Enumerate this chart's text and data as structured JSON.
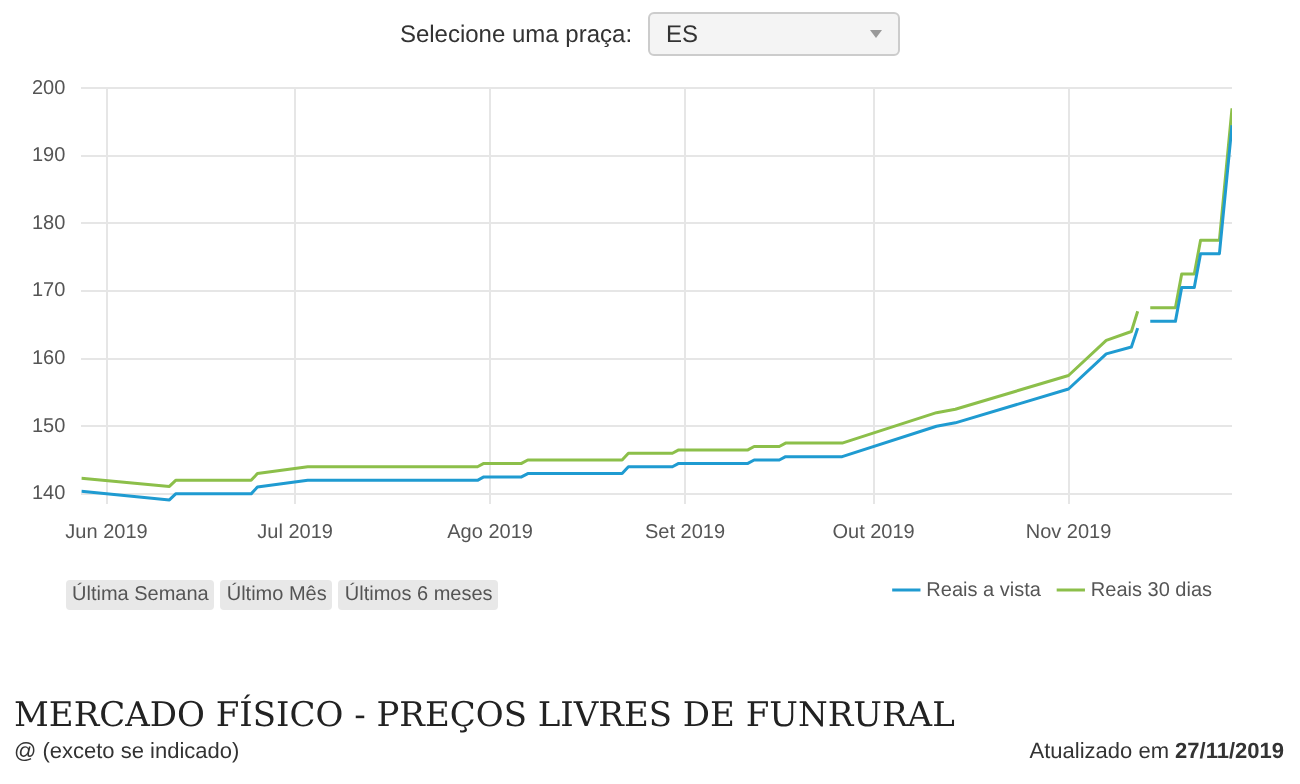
{
  "chart_data": {
    "type": "line",
    "title": "MERCADO FÍSICO - PREÇOS LIVRES DE FUNRURAL",
    "subtitle": "@ (exceto se indicado)",
    "annotations": [
      "Selecione uma praça:",
      "ES",
      "Última Semana",
      "Último Mês",
      "Últimos 6 meses",
      "Atualizado em 27/11/2019"
    ],
    "x": [
      "2019-05-28",
      "2019-06-11",
      "2019-06-12",
      "2019-06-24",
      "2019-06-25",
      "2019-07-03",
      "2019-07-30",
      "2019-07-31",
      "2019-08-06",
      "2019-08-07",
      "2019-08-22",
      "2019-08-23",
      "2019-08-30",
      "2019-08-31",
      "2019-09-11",
      "2019-09-12",
      "2019-09-16",
      "2019-09-17",
      "2019-09-26",
      "2019-10-11",
      "2019-10-14",
      "2019-11-01",
      "2019-11-07",
      "2019-11-11",
      "2019-11-12",
      "2019-11-13",
      "2019-11-14",
      "2019-11-18",
      "2019-11-19",
      "2019-11-21",
      "2019-11-22",
      "2019-11-25",
      "2019-11-27"
    ],
    "series": [
      {
        "name": "Reais a vista",
        "color": "#1f9bd1",
        "values": [
          140.4,
          139.1,
          140,
          140,
          141,
          142,
          142,
          142.5,
          142.5,
          143,
          143,
          144,
          144,
          144.5,
          144.5,
          145,
          145,
          145.5,
          145.5,
          150,
          150.5,
          155.5,
          160.7,
          161.7,
          164.5,
          null,
          165.5,
          165.5,
          170.5,
          170.5,
          175.5,
          175.5,
          194.5
        ]
      },
      {
        "name": "Reais 30 dias",
        "color": "#8cbf4a",
        "values": [
          142.3,
          141.1,
          142,
          142,
          143,
          144,
          144,
          144.5,
          144.5,
          145,
          145,
          146,
          146,
          146.5,
          146.5,
          147,
          147,
          147.5,
          147.5,
          152,
          152.5,
          157.5,
          162.7,
          164,
          167,
          null,
          167.5,
          167.5,
          172.5,
          172.5,
          177.5,
          177.5,
          197
        ]
      }
    ],
    "xlim": [
      "2019-05-28",
      "2019-11-27"
    ],
    "xticks": [
      {
        "value": "2019-06-01",
        "label": "Jun 2019"
      },
      {
        "value": "2019-07-01",
        "label": "Jul 2019"
      },
      {
        "value": "2019-08-01",
        "label": "Ago 2019"
      },
      {
        "value": "2019-09-01",
        "label": "Set 2019"
      },
      {
        "value": "2019-10-01",
        "label": "Out 2019"
      },
      {
        "value": "2019-11-01",
        "label": "Nov 2019"
      }
    ],
    "ylim": [
      138.5,
      200
    ],
    "yticks": [
      140,
      150,
      160,
      170,
      180,
      190,
      200
    ],
    "grid": true,
    "legend": "bottom right",
    "marker": "none",
    "line_style": "solid"
  }
}
